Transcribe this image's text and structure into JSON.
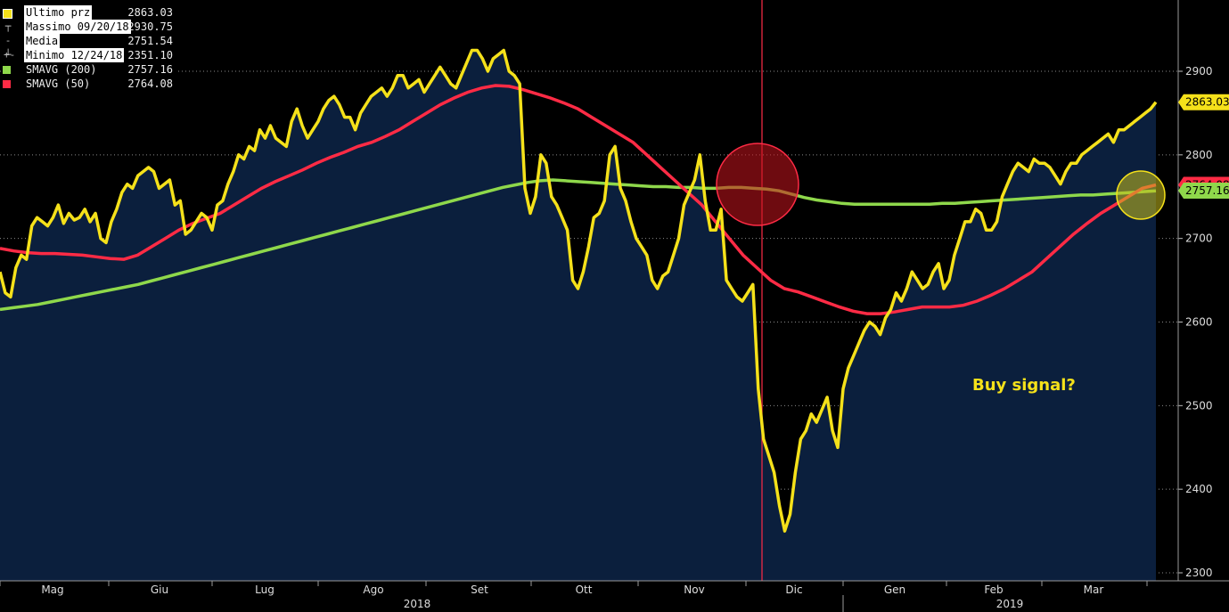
{
  "chart_data": {
    "type": "line",
    "y_axis": {
      "ticks": [
        2300,
        2400,
        2500,
        2600,
        2700,
        2800,
        2900
      ],
      "range": [
        2295,
        2985
      ],
      "side": "right"
    },
    "x_axis": {
      "months": [
        "Mag",
        "Giu",
        "Lug",
        "Ago",
        "Set",
        "Ott",
        "Nov",
        "Dic",
        "Gen",
        "Feb",
        "Mar"
      ],
      "years": [
        "2018",
        "2019"
      ]
    },
    "legend": {
      "placement": "top-left",
      "entries": [
        {
          "label": "Ultimo prz",
          "value": "2863.03",
          "color": "#f5e11a",
          "style": "box",
          "highlight": true
        },
        {
          "label": "Massimo 09/20/18",
          "value": "2930.75",
          "color": "#bbbbbb",
          "style": "high-marker",
          "highlight": true
        },
        {
          "label": "Media",
          "value": "2751.54",
          "color": "#bbbbbb",
          "style": "mid-marker",
          "highlight": true
        },
        {
          "label": "Minimo 12/24/18",
          "value": "2351.10",
          "color": "#bbbbbb",
          "style": "low-marker",
          "highlight": true
        },
        {
          "label": "SMAVG (200)",
          "value": "2757.16",
          "color": "#8fd84b",
          "style": "box",
          "highlight": false
        },
        {
          "label": "SMAVG (50)",
          "value": "2764.08",
          "color": "#ff2b45",
          "style": "box",
          "highlight": false
        }
      ]
    },
    "last_value_labels": [
      {
        "text": "2863.03",
        "value": 2863.03,
        "color": "#f5e11a"
      },
      {
        "text": "2764.08",
        "value": 2764.08,
        "color": "#ff2b45"
      },
      {
        "text": "2757.16",
        "value": 2757.16,
        "color": "#8fd84b"
      }
    ],
    "annotation": {
      "text": "Buy signal?",
      "color": "#f5e11a"
    },
    "series": [
      {
        "name": "Ultimo prz",
        "color": "#f5e11a",
        "area_fill": "#0b1f3d",
        "values": [
          2660,
          2635,
          2630,
          2665,
          2680,
          2675,
          2715,
          2725,
          2720,
          2715,
          2725,
          2740,
          2718,
          2730,
          2722,
          2725,
          2735,
          2720,
          2730,
          2700,
          2695,
          2720,
          2735,
          2755,
          2765,
          2760,
          2775,
          2780,
          2785,
          2780,
          2760,
          2765,
          2770,
          2740,
          2745,
          2705,
          2710,
          2720,
          2730,
          2725,
          2710,
          2740,
          2745,
          2765,
          2780,
          2800,
          2795,
          2810,
          2805,
          2830,
          2820,
          2835,
          2820,
          2815,
          2810,
          2840,
          2855,
          2835,
          2820,
          2830,
          2840,
          2855,
          2865,
          2870,
          2860,
          2845,
          2845,
          2830,
          2850,
          2860,
          2870,
          2875,
          2880,
          2870,
          2880,
          2895,
          2895,
          2880,
          2885,
          2890,
          2875,
          2885,
          2895,
          2905,
          2895,
          2885,
          2880,
          2895,
          2910,
          2925,
          2925,
          2915,
          2900,
          2915,
          2920,
          2925,
          2900,
          2895,
          2885,
          2760,
          2730,
          2750,
          2800,
          2790,
          2750,
          2740,
          2725,
          2710,
          2650,
          2640,
          2660,
          2690,
          2725,
          2730,
          2745,
          2800,
          2810,
          2760,
          2745,
          2720,
          2700,
          2690,
          2680,
          2650,
          2640,
          2655,
          2660,
          2680,
          2700,
          2740,
          2755,
          2770,
          2800,
          2745,
          2710,
          2710,
          2735,
          2650,
          2640,
          2630,
          2625,
          2635,
          2645,
          2520,
          2460,
          2440,
          2420,
          2380,
          2350,
          2370,
          2420,
          2460,
          2470,
          2490,
          2480,
          2495,
          2510,
          2470,
          2450,
          2520,
          2545,
          2560,
          2575,
          2590,
          2600,
          2595,
          2585,
          2605,
          2615,
          2635,
          2625,
          2640,
          2660,
          2650,
          2640,
          2645,
          2660,
          2670,
          2640,
          2650,
          2680,
          2700,
          2720,
          2720,
          2735,
          2730,
          2710,
          2710,
          2720,
          2750,
          2765,
          2780,
          2790,
          2785,
          2780,
          2795,
          2790,
          2790,
          2785,
          2775,
          2765,
          2780,
          2790,
          2790,
          2800,
          2805,
          2810,
          2815,
          2820,
          2825,
          2815,
          2830,
          2830,
          2835,
          2840,
          2845,
          2850,
          2855,
          2863
        ]
      },
      {
        "name": "SMAVG (200)",
        "color": "#8fd84b",
        "values": [
          2615,
          2617,
          2619,
          2621,
          2624,
          2627,
          2630,
          2633,
          2636,
          2639,
          2642,
          2645,
          2649,
          2653,
          2657,
          2661,
          2665,
          2669,
          2673,
          2677,
          2681,
          2685,
          2689,
          2693,
          2697,
          2701,
          2705,
          2709,
          2713,
          2717,
          2721,
          2725,
          2729,
          2733,
          2737,
          2741,
          2745,
          2749,
          2753,
          2757,
          2761,
          2764,
          2767,
          2769,
          2770,
          2769,
          2768,
          2767,
          2766,
          2765,
          2764,
          2763,
          2762,
          2762,
          2761,
          2761,
          2760,
          2760,
          2761,
          2761,
          2760,
          2759,
          2757,
          2753,
          2749,
          2746,
          2744,
          2742,
          2741,
          2741,
          2741,
          2741,
          2741,
          2741,
          2741,
          2742,
          2742,
          2743,
          2744,
          2745,
          2746,
          2747,
          2748,
          2749,
          2750,
          2751,
          2752,
          2752,
          2753,
          2754,
          2755,
          2756,
          2757
        ]
      },
      {
        "name": "SMAVG (50)",
        "color": "#ff2b45",
        "values": [
          2688,
          2685,
          2683,
          2682,
          2682,
          2681,
          2680,
          2678,
          2676,
          2675,
          2680,
          2690,
          2700,
          2710,
          2718,
          2724,
          2730,
          2740,
          2750,
          2760,
          2768,
          2775,
          2782,
          2790,
          2797,
          2803,
          2810,
          2815,
          2822,
          2830,
          2840,
          2850,
          2860,
          2868,
          2875,
          2880,
          2883,
          2882,
          2878,
          2873,
          2868,
          2862,
          2855,
          2845,
          2835,
          2825,
          2815,
          2800,
          2785,
          2770,
          2755,
          2740,
          2720,
          2700,
          2680,
          2665,
          2650,
          2640,
          2636,
          2630,
          2624,
          2618,
          2613,
          2610,
          2610,
          2612,
          2615,
          2618,
          2618,
          2618,
          2620,
          2625,
          2632,
          2640,
          2650,
          2660,
          2675,
          2690,
          2705,
          2718,
          2730,
          2740,
          2750,
          2760,
          2764
        ]
      }
    ]
  }
}
